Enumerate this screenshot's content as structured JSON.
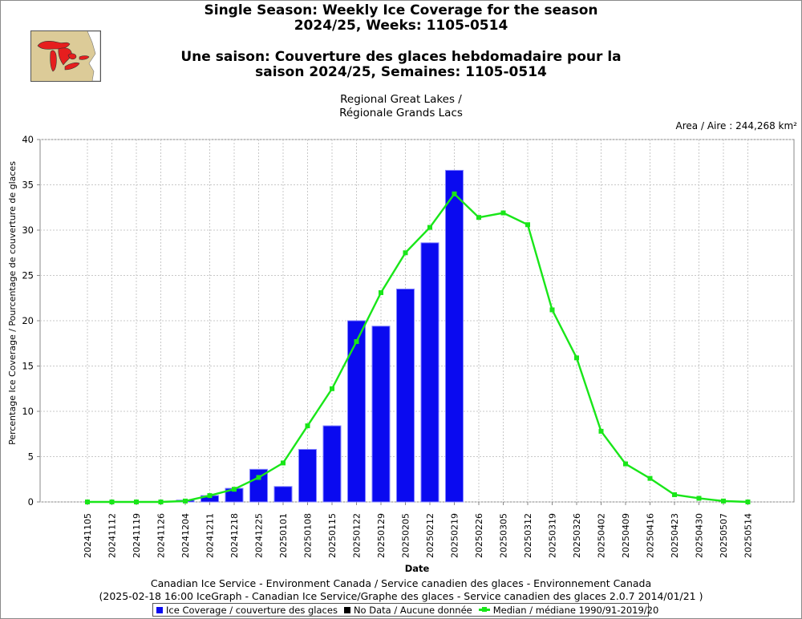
{
  "header": {
    "title_en_1": "Single Season: Weekly Ice Coverage for the season",
    "title_en_2": "2024/25, Weeks: 1105-0514",
    "title_fr_1": "Une saison: Couverture des glaces hebdomadaire pour la",
    "title_fr_2": "saison 2024/25, Semaines: 1105-0514",
    "region_1": "Regional Great Lakes /",
    "region_2": "Régionale Grands Lacs",
    "area": "Area / Aire : 244,268 km²"
  },
  "logo_icon": "great-lakes-map-icon",
  "footer": {
    "line1": "Canadian Ice Service - Environment Canada / Service canadien des glaces - Environnement Canada",
    "line2": "(2025-02-18 16:00 IceGraph - Canadian Ice Service/Graphe des glaces - Service canadien des glaces 2.0.7 2014/01/21 )"
  },
  "legend": {
    "ice": "Ice Coverage / couverture des glaces",
    "nodata": "No Data / Aucune donnée",
    "median": "Median / médiane 1990/91-2019/20"
  },
  "colors": {
    "ice": "#0a0af0",
    "nodata": "#000000",
    "median": "#19e619",
    "grid": "#c8c8c8"
  },
  "chart_data": {
    "type": "bar",
    "xlabel": "Date",
    "ylabel": "Percentage Ice Coverage / Pourcentage de couverture de glaces",
    "ylim": [
      0,
      40
    ],
    "yticks": [
      0,
      5,
      10,
      15,
      20,
      25,
      30,
      35,
      40
    ],
    "grid": true,
    "legend_position": "bottom",
    "categories": [
      "20241105",
      "20241112",
      "20241119",
      "20241126",
      "20241204",
      "20241211",
      "20241218",
      "20241225",
      "20250101",
      "20250108",
      "20250115",
      "20250122",
      "20250129",
      "20250205",
      "20250212",
      "20250219",
      "20250226",
      "20250305",
      "20250312",
      "20250319",
      "20250326",
      "20250402",
      "20250409",
      "20250416",
      "20250423",
      "20250430",
      "20250507",
      "20250514"
    ],
    "series": [
      {
        "name": "Ice Coverage / couverture des glaces",
        "type": "bar",
        "values": [
          0,
          0,
          0,
          0,
          0.2,
          0.7,
          1.5,
          3.6,
          1.7,
          5.8,
          8.4,
          20.0,
          19.4,
          23.5,
          28.6,
          36.6,
          null,
          null,
          null,
          null,
          null,
          null,
          null,
          null,
          null,
          null,
          null,
          null
        ]
      },
      {
        "name": "Median / médiane 1990/91-2019/20",
        "type": "line",
        "values": [
          0,
          0,
          0,
          0,
          0.1,
          0.7,
          1.4,
          2.7,
          4.3,
          8.4,
          12.5,
          17.7,
          23.1,
          27.5,
          30.3,
          34.0,
          31.4,
          31.9,
          30.6,
          21.2,
          15.9,
          7.8,
          4.2,
          2.6,
          0.8,
          0.4,
          0.1,
          0.0
        ]
      }
    ]
  }
}
